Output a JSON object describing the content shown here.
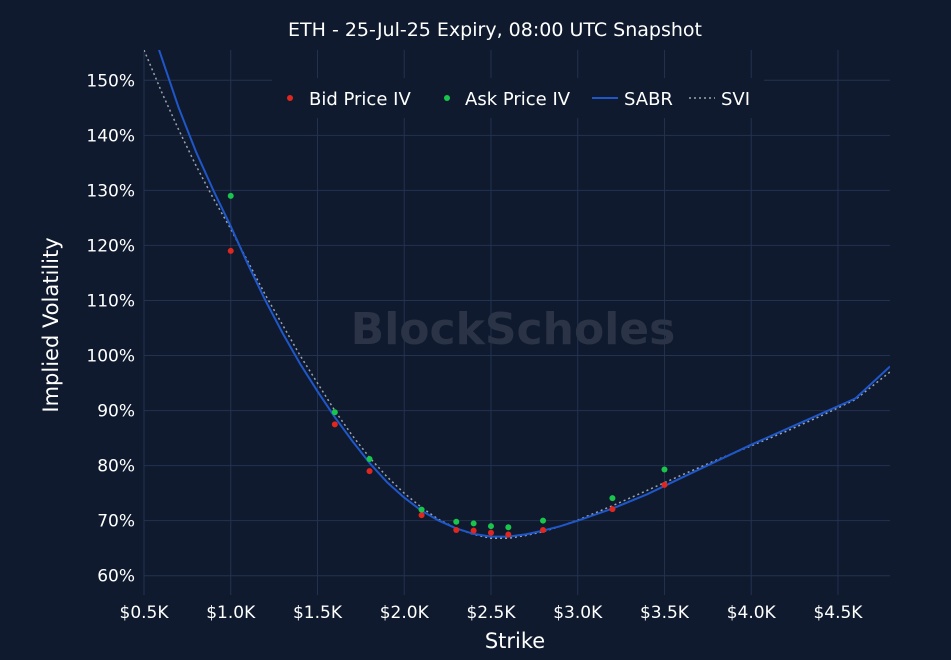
{
  "chart_data": {
    "type": "scatter",
    "title": "ETH - 25-Jul-25 Expiry, 08:00 UTC Snapshot",
    "xlabel": "Strike",
    "ylabel": "Implied Volatility",
    "watermark": "BlockScholes",
    "xlim": [
      500,
      4800
    ],
    "ylim": [
      0.565,
      1.555
    ],
    "x_ticks": [
      {
        "value": 500,
        "label": "$0.5K"
      },
      {
        "value": 1000,
        "label": "$1.0K"
      },
      {
        "value": 1500,
        "label": "$1.5K"
      },
      {
        "value": 2000,
        "label": "$2.0K"
      },
      {
        "value": 2500,
        "label": "$2.5K"
      },
      {
        "value": 3000,
        "label": "$3.0K"
      },
      {
        "value": 3500,
        "label": "$3.5K"
      },
      {
        "value": 4000,
        "label": "$4.0K"
      },
      {
        "value": 4500,
        "label": "$4.5K"
      }
    ],
    "y_ticks": [
      {
        "value": 0.6,
        "label": "60%"
      },
      {
        "value": 0.7,
        "label": "70%"
      },
      {
        "value": 0.8,
        "label": "80%"
      },
      {
        "value": 0.9,
        "label": "90%"
      },
      {
        "value": 1.0,
        "label": "100%"
      },
      {
        "value": 1.1,
        "label": "110%"
      },
      {
        "value": 1.2,
        "label": "120%"
      },
      {
        "value": 1.3,
        "label": "130%"
      },
      {
        "value": 1.4,
        "label": "140%"
      },
      {
        "value": 1.5,
        "label": "150%"
      }
    ],
    "grid": true,
    "legend_position": "top",
    "series": [
      {
        "name": "Bid Price IV",
        "kind": "scatter",
        "color": "#e0271f",
        "x": [
          1000,
          1600,
          1800,
          2100,
          2300,
          2400,
          2500,
          2600,
          2800,
          3200,
          3500
        ],
        "y": [
          1.19,
          0.875,
          0.79,
          0.71,
          0.683,
          0.682,
          0.678,
          0.675,
          0.683,
          0.721,
          0.765
        ]
      },
      {
        "name": "Ask Price IV",
        "kind": "scatter",
        "color": "#19c54b",
        "x": [
          1000,
          1600,
          1800,
          2100,
          2300,
          2400,
          2500,
          2600,
          2800,
          3200,
          3500
        ],
        "y": [
          1.29,
          0.897,
          0.812,
          0.72,
          0.698,
          0.695,
          0.69,
          0.688,
          0.7,
          0.741,
          0.793
        ]
      },
      {
        "name": "SABR",
        "kind": "line",
        "color": "#1f57c9",
        "x": [
          560,
          700,
          800,
          900,
          1000,
          1100,
          1200,
          1300,
          1400,
          1500,
          1600,
          1700,
          1800,
          1900,
          2000,
          2100,
          2200,
          2300,
          2400,
          2500,
          2600,
          2700,
          2800,
          2900,
          3000,
          3200,
          3400,
          3600,
          3800,
          4000,
          4200,
          4400,
          4600,
          4800
        ],
        "y": [
          1.58,
          1.45,
          1.37,
          1.3,
          1.235,
          1.165,
          1.1,
          1.04,
          0.985,
          0.935,
          0.888,
          0.845,
          0.805,
          0.77,
          0.742,
          0.718,
          0.7,
          0.686,
          0.676,
          0.671,
          0.671,
          0.675,
          0.682,
          0.69,
          0.7,
          0.722,
          0.748,
          0.778,
          0.808,
          0.838,
          0.866,
          0.894,
          0.922,
          0.98
        ]
      },
      {
        "name": "SVI",
        "kind": "dotted",
        "color": "#9aa4b2",
        "x": [
          500,
          600,
          700,
          800,
          900,
          1000,
          1100,
          1200,
          1300,
          1400,
          1500,
          1600,
          1700,
          1800,
          1900,
          2000,
          2100,
          2200,
          2300,
          2400,
          2500,
          2600,
          2700,
          2800,
          2900,
          3000,
          3200,
          3400,
          3600,
          3800,
          4000,
          4200,
          4400,
          4600,
          4800
        ],
        "y": [
          1.555,
          1.48,
          1.41,
          1.345,
          1.285,
          1.23,
          1.17,
          1.11,
          1.055,
          1.0,
          0.95,
          0.9,
          0.855,
          0.815,
          0.78,
          0.75,
          0.724,
          0.702,
          0.686,
          0.675,
          0.668,
          0.668,
          0.673,
          0.68,
          0.69,
          0.701,
          0.727,
          0.755,
          0.783,
          0.81,
          0.836,
          0.862,
          0.89,
          0.92,
          0.97
        ]
      }
    ]
  }
}
